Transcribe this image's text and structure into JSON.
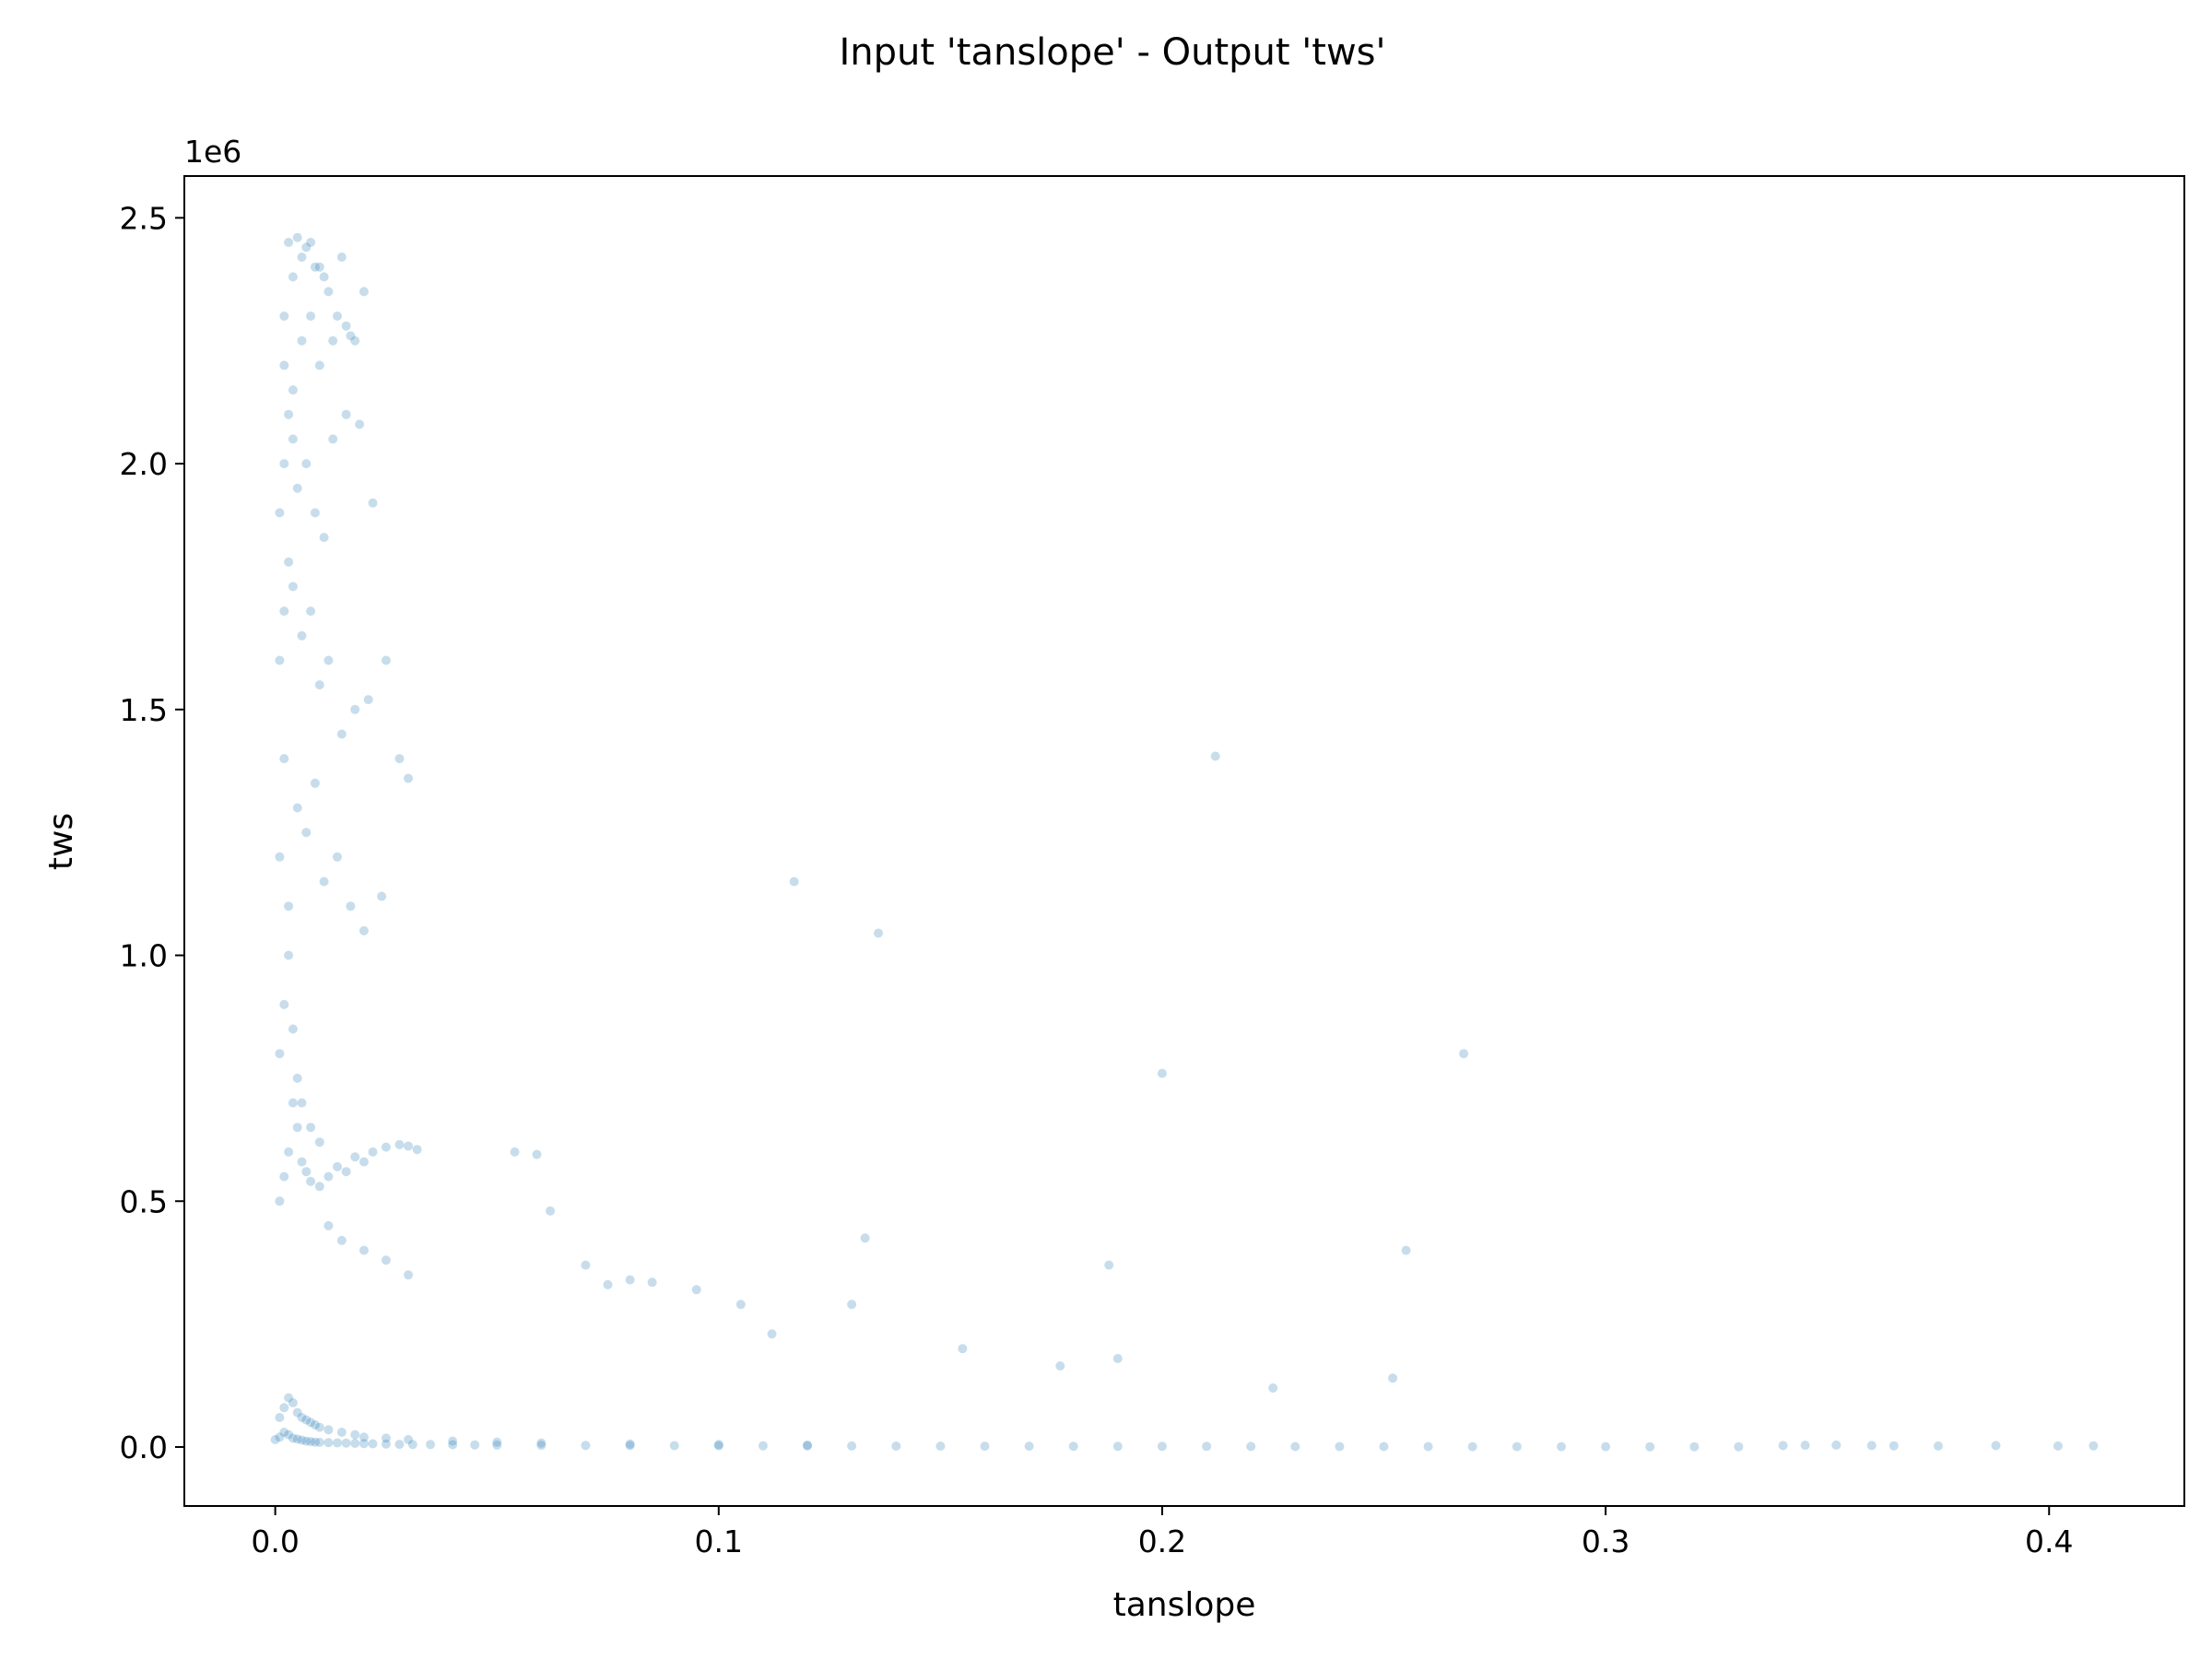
{
  "chart_data": {
    "type": "scatter",
    "title": "Input 'tanslope' - Output 'tws'",
    "xlabel": "tanslope",
    "ylabel": "tws",
    "y_offset_label": "1e6",
    "xlim": [
      -0.0205,
      0.4305
    ],
    "ylim": [
      -120000,
      2585000
    ],
    "xticks": [
      0.0,
      0.1,
      0.2,
      0.3,
      0.4
    ],
    "xtick_labels": [
      "0.0",
      "0.1",
      "0.2",
      "0.3",
      "0.4"
    ],
    "yticks": [
      0,
      500000,
      1000000,
      1500000,
      2000000,
      2500000
    ],
    "ytick_labels": [
      "0.0",
      "0.5",
      "1.0",
      "1.5",
      "2.0",
      "2.5"
    ],
    "grid": false,
    "marker_color": "#1f77b4",
    "marker_alpha": 0.25,
    "series": [
      {
        "x": [
          0.0,
          0.001,
          0.002,
          0.003,
          0.004,
          0.005,
          0.006,
          0.007,
          0.008,
          0.009,
          0.01,
          0.012,
          0.014,
          0.016,
          0.018,
          0.02,
          0.022,
          0.025,
          0.028,
          0.031,
          0.035,
          0.04,
          0.045,
          0.05,
          0.06,
          0.07,
          0.08,
          0.09,
          0.1,
          0.11,
          0.12,
          0.13,
          0.14,
          0.15,
          0.16,
          0.17,
          0.18,
          0.19,
          0.2,
          0.21,
          0.22,
          0.23,
          0.24,
          0.25,
          0.26,
          0.27,
          0.28,
          0.29,
          0.3,
          0.31,
          0.32,
          0.33,
          0.001,
          0.002,
          0.003,
          0.004,
          0.005,
          0.006,
          0.007,
          0.008,
          0.009,
          0.01,
          0.012,
          0.015,
          0.018,
          0.02,
          0.025,
          0.03,
          0.04,
          0.05,
          0.06,
          0.08,
          0.1,
          0.12,
          0.001,
          0.002,
          0.003,
          0.004,
          0.005,
          0.006,
          0.007,
          0.008,
          0.01,
          0.012,
          0.014,
          0.016,
          0.018,
          0.02,
          0.022,
          0.025,
          0.028,
          0.03,
          0.032,
          0.001,
          0.002,
          0.003,
          0.004,
          0.005,
          0.006,
          0.008,
          0.01,
          0.012,
          0.015,
          0.02,
          0.025,
          0.03,
          0.001,
          0.002,
          0.003,
          0.005,
          0.007,
          0.009,
          0.011,
          0.014,
          0.017,
          0.02,
          0.024,
          0.028,
          0.03,
          0.001,
          0.002,
          0.003,
          0.004,
          0.006,
          0.008,
          0.01,
          0.012,
          0.015,
          0.018,
          0.021,
          0.025,
          0.001,
          0.002,
          0.003,
          0.004,
          0.005,
          0.007,
          0.009,
          0.011,
          0.013,
          0.016,
          0.019,
          0.022,
          0.002,
          0.004,
          0.006,
          0.008,
          0.01,
          0.013,
          0.016,
          0.02,
          0.002,
          0.004,
          0.006,
          0.008,
          0.01,
          0.012,
          0.015,
          0.018,
          0.003,
          0.005,
          0.007,
          0.009,
          0.011,
          0.014,
          0.017,
          0.054,
          0.059,
          0.062,
          0.07,
          0.075,
          0.08,
          0.085,
          0.095,
          0.105,
          0.112,
          0.117,
          0.13,
          0.133,
          0.136,
          0.155,
          0.177,
          0.188,
          0.19,
          0.2,
          0.212,
          0.225,
          0.252,
          0.255,
          0.268,
          0.34,
          0.345,
          0.352,
          0.36,
          0.365,
          0.375,
          0.388,
          0.402,
          0.41
        ],
        "y": [
          15000,
          20000,
          30000,
          25000,
          18000,
          16000,
          14000,
          12000,
          11000,
          10000,
          9500,
          9000,
          8500,
          8000,
          7500,
          7000,
          6500,
          6000,
          5500,
          5200,
          5000,
          4600,
          4200,
          4000,
          3600,
          3200,
          3000,
          2800,
          2600,
          2400,
          2200,
          2000,
          1900,
          1800,
          1700,
          1600,
          1500,
          1400,
          1300,
          1200,
          1100,
          1000,
          950,
          900,
          850,
          800,
          750,
          700,
          650,
          600,
          550,
          500,
          60000,
          80000,
          100000,
          90000,
          70000,
          60000,
          55000,
          50000,
          45000,
          40000,
          35000,
          30000,
          25000,
          20000,
          18000,
          15000,
          12000,
          10000,
          8000,
          6000,
          5000,
          4000,
          500000,
          550000,
          600000,
          700000,
          650000,
          580000,
          560000,
          540000,
          530000,
          550000,
          570000,
          560000,
          590000,
          580000,
          600000,
          610000,
          615000,
          612000,
          605000,
          800000,
          900000,
          1000000,
          850000,
          750000,
          700000,
          650000,
          620000,
          450000,
          420000,
          400000,
          380000,
          350000,
          1200000,
          1400000,
          1100000,
          1300000,
          1250000,
          1350000,
          1150000,
          1200000,
          1100000,
          1050000,
          1120000,
          1400000,
          1360000,
          1600000,
          1700000,
          1800000,
          1750000,
          1650000,
          1700000,
          1550000,
          1600000,
          1450000,
          1500000,
          1520000,
          1600000,
          1900000,
          2000000,
          2100000,
          2050000,
          1950000,
          2000000,
          1900000,
          1850000,
          2050000,
          2100000,
          2080000,
          1920000,
          2200000,
          2150000,
          2250000,
          2300000,
          2200000,
          2250000,
          2280000,
          2350000,
          2300000,
          2380000,
          2420000,
          2450000,
          2400000,
          2350000,
          2420000,
          2250000,
          2450000,
          2460000,
          2440000,
          2400000,
          2380000,
          2300000,
          2260000,
          600000,
          595000,
          480000,
          370000,
          330000,
          340000,
          335000,
          320000,
          290000,
          230000,
          1150000,
          290000,
          425000,
          1045000,
          200000,
          165000,
          370000,
          180000,
          760000,
          1405000,
          120000,
          140000,
          400000,
          800000,
          3000,
          3500,
          4000,
          3000,
          2500,
          2000,
          3000,
          2000,
          2500
        ]
      }
    ]
  }
}
